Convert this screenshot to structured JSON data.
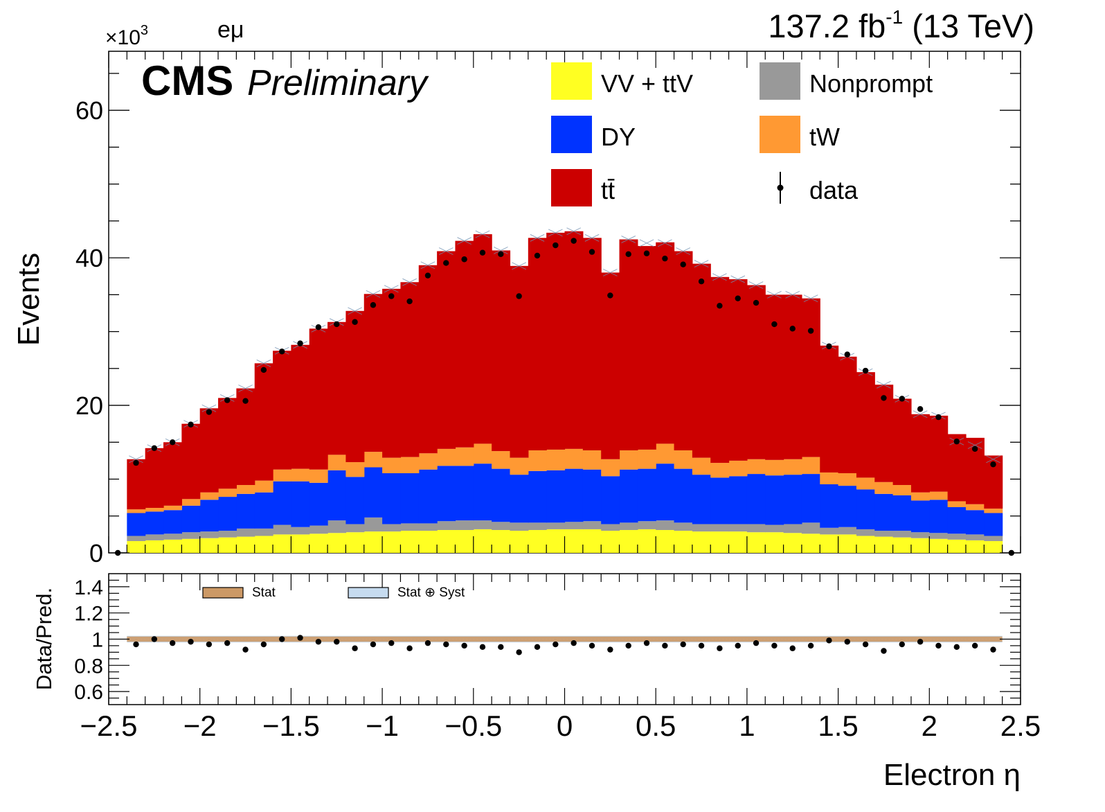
{
  "header": {
    "multiplier_base": "×10",
    "multiplier_exp": "3",
    "channel": "eμ",
    "lumi_value": "137.2 fb",
    "lumi_exp": "-1",
    "energy": " (13 TeV)",
    "experiment": "CMS",
    "status": "Preliminary"
  },
  "colors": {
    "vv_ttv": "#ffff22",
    "nonprompt": "#999999",
    "dy": "#0033ff",
    "tw": "#ff9933",
    "ttbar": "#cc0000",
    "data": "#000000",
    "stat_band": "#cc9966",
    "stat_syst_band": "#c6dbef"
  },
  "chart_data": [
    {
      "type": "bar",
      "stacked": true,
      "xlabel": "Electron η",
      "ylabel": "Events",
      "xlim": [
        -2.5,
        2.5
      ],
      "ylim": [
        0,
        68
      ],
      "y_unit_multiplier": "×10^3",
      "y_ticks": [
        "0",
        "20",
        "40",
        "60"
      ],
      "x_ticks": [
        "−2.5",
        "−2",
        "−1.5",
        "−1",
        "−0.5",
        "0",
        "0.5",
        "1",
        "1.5",
        "2",
        "2.5"
      ],
      "bin_width": 0.1,
      "bin_lowedges": [
        -2.4,
        -2.3,
        -2.2,
        -2.1,
        -2.0,
        -1.9,
        -1.8,
        -1.7,
        -1.6,
        -1.5,
        -1.4,
        -1.3,
        -1.2,
        -1.1,
        -1.0,
        -0.9,
        -0.8,
        -0.7,
        -0.6,
        -0.5,
        -0.4,
        -0.3,
        -0.2,
        -0.1,
        0.0,
        0.1,
        0.2,
        0.3,
        0.4,
        0.5,
        0.6,
        0.7,
        0.8,
        0.9,
        1.0,
        1.1,
        1.2,
        1.3,
        1.4,
        1.5,
        1.6,
        1.7,
        1.8,
        1.9,
        2.0,
        2.1,
        2.2,
        2.3
      ],
      "series": [
        {
          "name": "VV + ttV",
          "color_key": "vv_ttv",
          "values": [
            1.6,
            1.7,
            1.8,
            1.9,
            2.0,
            2.1,
            2.2,
            2.3,
            2.5,
            2.5,
            2.6,
            2.7,
            2.8,
            2.9,
            2.9,
            3.0,
            3.0,
            3.1,
            3.1,
            3.2,
            3.1,
            3.0,
            3.1,
            3.2,
            3.2,
            3.2,
            3.0,
            3.1,
            3.2,
            3.1,
            3.0,
            2.9,
            2.9,
            2.9,
            2.8,
            2.8,
            2.7,
            2.6,
            2.5,
            2.5,
            2.3,
            2.2,
            2.1,
            2.0,
            1.9,
            1.8,
            1.7,
            1.6
          ]
        },
        {
          "name": "Nonprompt",
          "color_key": "nonprompt",
          "values": [
            0.7,
            0.8,
            0.8,
            0.9,
            0.9,
            0.9,
            1.1,
            1.0,
            1.3,
            1.0,
            1.1,
            1.7,
            1.1,
            1.9,
            1.0,
            1.0,
            1.0,
            1.2,
            1.3,
            1.2,
            1.1,
            1.1,
            1.0,
            0.9,
            1.0,
            1.1,
            0.9,
            1.0,
            1.1,
            1.3,
            1.1,
            1.0,
            1.0,
            1.0,
            1.1,
            1.0,
            1.2,
            1.5,
            0.9,
            1.0,
            0.9,
            0.8,
            0.9,
            0.8,
            0.8,
            0.8,
            0.8,
            0.7
          ]
        },
        {
          "name": "DY",
          "color_key": "dy",
          "values": [
            3.1,
            3.1,
            3.2,
            3.6,
            4.3,
            4.6,
            4.7,
            4.9,
            5.9,
            6.2,
            5.8,
            6.8,
            6.4,
            6.8,
            6.9,
            6.8,
            7.3,
            7.5,
            7.4,
            7.7,
            7.2,
            6.5,
            7.0,
            7.1,
            7.2,
            7.0,
            6.5,
            7.2,
            7.1,
            7.7,
            7.3,
            6.7,
            6.3,
            6.5,
            6.8,
            6.7,
            6.7,
            6.6,
            5.9,
            5.6,
            5.4,
            5.0,
            4.8,
            4.3,
            4.5,
            3.6,
            3.3,
            3.1
          ]
        },
        {
          "name": "tW",
          "color_key": "tw",
          "values": [
            0.5,
            0.5,
            0.6,
            0.9,
            1.0,
            1.1,
            1.2,
            1.6,
            1.6,
            1.7,
            1.8,
            2.1,
            2.0,
            2.1,
            2.1,
            2.2,
            2.2,
            2.3,
            2.5,
            2.7,
            2.4,
            2.3,
            2.8,
            2.8,
            2.7,
            2.6,
            2.3,
            2.6,
            2.6,
            2.7,
            2.5,
            2.3,
            2.0,
            2.1,
            2.0,
            2.1,
            2.1,
            2.3,
            1.6,
            1.7,
            1.6,
            1.6,
            1.4,
            1.1,
            1.1,
            0.8,
            0.8,
            0.6
          ]
        },
        {
          "name": "tt̄",
          "color_key": "ttbar",
          "values": [
            6.8,
            8.1,
            8.6,
            10.2,
            11.4,
            12.3,
            13.1,
            15.9,
            16.1,
            16.8,
            19.1,
            18.0,
            20.5,
            21.4,
            22.9,
            23.7,
            25.5,
            26.8,
            28.0,
            28.4,
            27.2,
            26.0,
            28.8,
            29.4,
            29.5,
            28.8,
            25.3,
            28.6,
            27.6,
            27.3,
            27.0,
            26.3,
            25.2,
            24.6,
            23.6,
            22.4,
            22.3,
            21.5,
            17.2,
            15.8,
            14.3,
            13.2,
            11.7,
            10.6,
            10.3,
            9.1,
            9.0,
            7.2
          ]
        }
      ],
      "prediction_total": [
        12.7,
        14.2,
        15.0,
        17.5,
        19.6,
        21.0,
        22.3,
        25.7,
        27.4,
        28.2,
        30.4,
        31.3,
        32.8,
        35.1,
        35.8,
        36.7,
        39.0,
        40.9,
        42.3,
        43.2,
        41.0,
        38.9,
        42.7,
        43.4,
        43.6,
        42.7,
        38.0,
        42.5,
        42.0,
        42.0,
        40.9,
        39.2,
        37.4,
        37.1,
        36.3,
        35.0,
        35.0,
        34.5,
        28.1,
        26.6,
        24.5,
        22.8,
        20.9,
        18.8,
        18.6,
        15.1,
        14.6,
        12.7
      ],
      "data_points": {
        "name": "data",
        "x": [
          -2.45,
          -2.35,
          -2.25,
          -2.15,
          -2.05,
          -1.95,
          -1.85,
          -1.75,
          -1.65,
          -1.55,
          -1.45,
          -1.35,
          -1.25,
          -1.15,
          -1.05,
          -0.95,
          -0.85,
          -0.75,
          -0.65,
          -0.55,
          -0.45,
          -0.35,
          -0.25,
          -0.15,
          -0.05,
          0.05,
          0.15,
          0.25,
          0.35,
          0.45,
          0.55,
          0.65,
          0.75,
          0.85,
          0.95,
          1.05,
          1.15,
          1.25,
          1.35,
          1.45,
          1.55,
          1.65,
          1.75,
          1.85,
          1.95,
          2.05,
          2.15,
          2.25,
          2.35,
          2.45
        ],
        "y": [
          0,
          12.2,
          14.2,
          15.0,
          17.4,
          19.1,
          20.7,
          20.6,
          24.8,
          27.3,
          28.4,
          30.6,
          31.0,
          31.3,
          33.6,
          34.8,
          34.1,
          37.6,
          39.3,
          39.8,
          40.7,
          40.5,
          34.8,
          40.3,
          41.7,
          42.3,
          40.8,
          34.9,
          40.5,
          40.6,
          39.9,
          39.1,
          36.8,
          33.5,
          34.5,
          33.9,
          31.0,
          30.4,
          30.1,
          28.0,
          26.9,
          24.7,
          21.0,
          20.9,
          19.5,
          18.4,
          15.1,
          14.1,
          12.0,
          0
        ]
      },
      "legend": [
        {
          "label": "VV + ttV",
          "color_key": "vv_ttv",
          "kind": "box"
        },
        {
          "label": "Nonprompt",
          "color_key": "nonprompt",
          "kind": "box"
        },
        {
          "label": "DY",
          "color_key": "dy",
          "kind": "box"
        },
        {
          "label": "tW",
          "color_key": "tw",
          "kind": "box"
        },
        {
          "label": "tt̄",
          "color_key": "ttbar",
          "kind": "box"
        },
        {
          "label": "data",
          "color_key": "data",
          "kind": "marker"
        }
      ],
      "legend_position": "top-right"
    },
    {
      "type": "scatter",
      "panel": "ratio",
      "xlabel": "Electron η",
      "ylabel": "Data/Pred.",
      "xlim": [
        -2.5,
        2.5
      ],
      "ylim": [
        0.5,
        1.5
      ],
      "y_ticks": [
        "0.6",
        "0.8",
        "1",
        "1.2",
        "1.4"
      ],
      "ratio_x": [
        -2.35,
        -2.25,
        -2.15,
        -2.05,
        -1.95,
        -1.85,
        -1.75,
        -1.65,
        -1.55,
        -1.45,
        -1.35,
        -1.25,
        -1.15,
        -1.05,
        -0.95,
        -0.85,
        -0.75,
        -0.65,
        -0.55,
        -0.45,
        -0.35,
        -0.25,
        -0.15,
        -0.05,
        0.05,
        0.15,
        0.25,
        0.35,
        0.45,
        0.55,
        0.65,
        0.75,
        0.85,
        0.95,
        1.05,
        1.15,
        1.25,
        1.35,
        1.45,
        1.55,
        1.65,
        1.75,
        1.85,
        1.95,
        2.05,
        2.15,
        2.25,
        2.35
      ],
      "ratio_y": [
        0.96,
        1.0,
        0.97,
        0.98,
        0.96,
        0.97,
        0.92,
        0.96,
        1.0,
        1.01,
        0.98,
        0.98,
        0.93,
        0.96,
        0.97,
        0.93,
        0.97,
        0.96,
        0.95,
        0.94,
        0.94,
        0.9,
        0.94,
        0.96,
        0.97,
        0.95,
        0.92,
        0.95,
        0.97,
        0.95,
        0.96,
        0.95,
        0.93,
        0.95,
        0.97,
        0.95,
        0.93,
        0.95,
        0.99,
        0.98,
        0.96,
        0.91,
        0.96,
        0.98,
        0.95,
        0.94,
        0.95,
        0.92
      ],
      "stat_band_halfwidth": 0.02,
      "stat_syst_band_halfwidth": 0.025,
      "legend": [
        {
          "label": "Stat",
          "color_key": "stat_band"
        },
        {
          "label": "Stat ⊕ Syst",
          "color_key": "stat_syst_band"
        }
      ]
    }
  ]
}
